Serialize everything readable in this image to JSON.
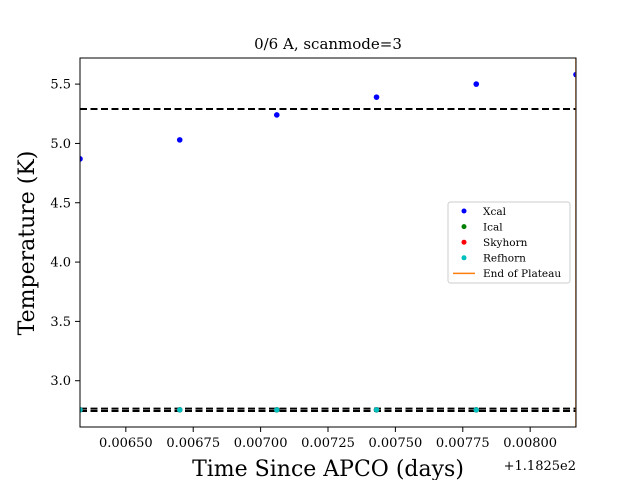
{
  "chart_data": {
    "type": "scatter",
    "title": "0/6 A, scanmode=3",
    "xlabel": "Time Since APCO (days)",
    "ylabel": "Temperature (K)",
    "x_offset_label": "+1.1825e2",
    "xlim": [
      0.00633,
      0.00817
    ],
    "ylim": [
      2.61,
      5.72
    ],
    "x_ticks": [
      0.0065,
      0.00675,
      0.007,
      0.00725,
      0.0075,
      0.00775,
      0.008
    ],
    "x_tick_labels": [
      "0.00650",
      "0.00675",
      "0.00700",
      "0.00725",
      "0.00750",
      "0.00775",
      "0.00800"
    ],
    "y_ticks": [
      3.0,
      3.5,
      4.0,
      4.5,
      5.0,
      5.5
    ],
    "y_tick_labels": [
      "3.0",
      "3.5",
      "4.0",
      "4.5",
      "5.0",
      "5.5"
    ],
    "grid": false,
    "legend_position": "center-right",
    "series": [
      {
        "name": "Xcal",
        "color": "#0000ff",
        "marker": "dot",
        "x": [
          0.00633,
          0.0067,
          0.00706,
          0.00743,
          0.0078,
          0.00817
        ],
        "y": [
          4.87,
          5.03,
          5.24,
          5.39,
          5.5,
          5.58
        ]
      },
      {
        "name": "Ical",
        "color": "#008000",
        "marker": "dot",
        "x": [
          0.00633,
          0.0067,
          0.00706,
          0.00743,
          0.0078
        ],
        "y": [
          2.755,
          2.755,
          2.755,
          2.755,
          2.755
        ]
      },
      {
        "name": "Skyhorn",
        "color": "#ff0000",
        "marker": "dot",
        "x": [
          0.00633,
          0.0067,
          0.00706,
          0.00743,
          0.0078
        ],
        "y": [
          2.755,
          2.755,
          2.755,
          2.755,
          2.755
        ]
      },
      {
        "name": "Refhorn",
        "color": "#00bfbf",
        "marker": "dot",
        "x": [
          0.00633,
          0.0067,
          0.00706,
          0.00743,
          0.0078
        ],
        "y": [
          2.755,
          2.755,
          2.755,
          2.755,
          2.755
        ]
      },
      {
        "name": "End of Plateau",
        "color": "#ff7f0e",
        "marker": "vline",
        "x": [
          0.00817
        ]
      }
    ],
    "reference_lines": [
      {
        "y": 5.29,
        "color": "#000000",
        "style": "dashed"
      },
      {
        "y": 2.765,
        "color": "#000000",
        "style": "dashed"
      },
      {
        "y": 2.745,
        "color": "#000000",
        "style": "dashed"
      }
    ]
  }
}
